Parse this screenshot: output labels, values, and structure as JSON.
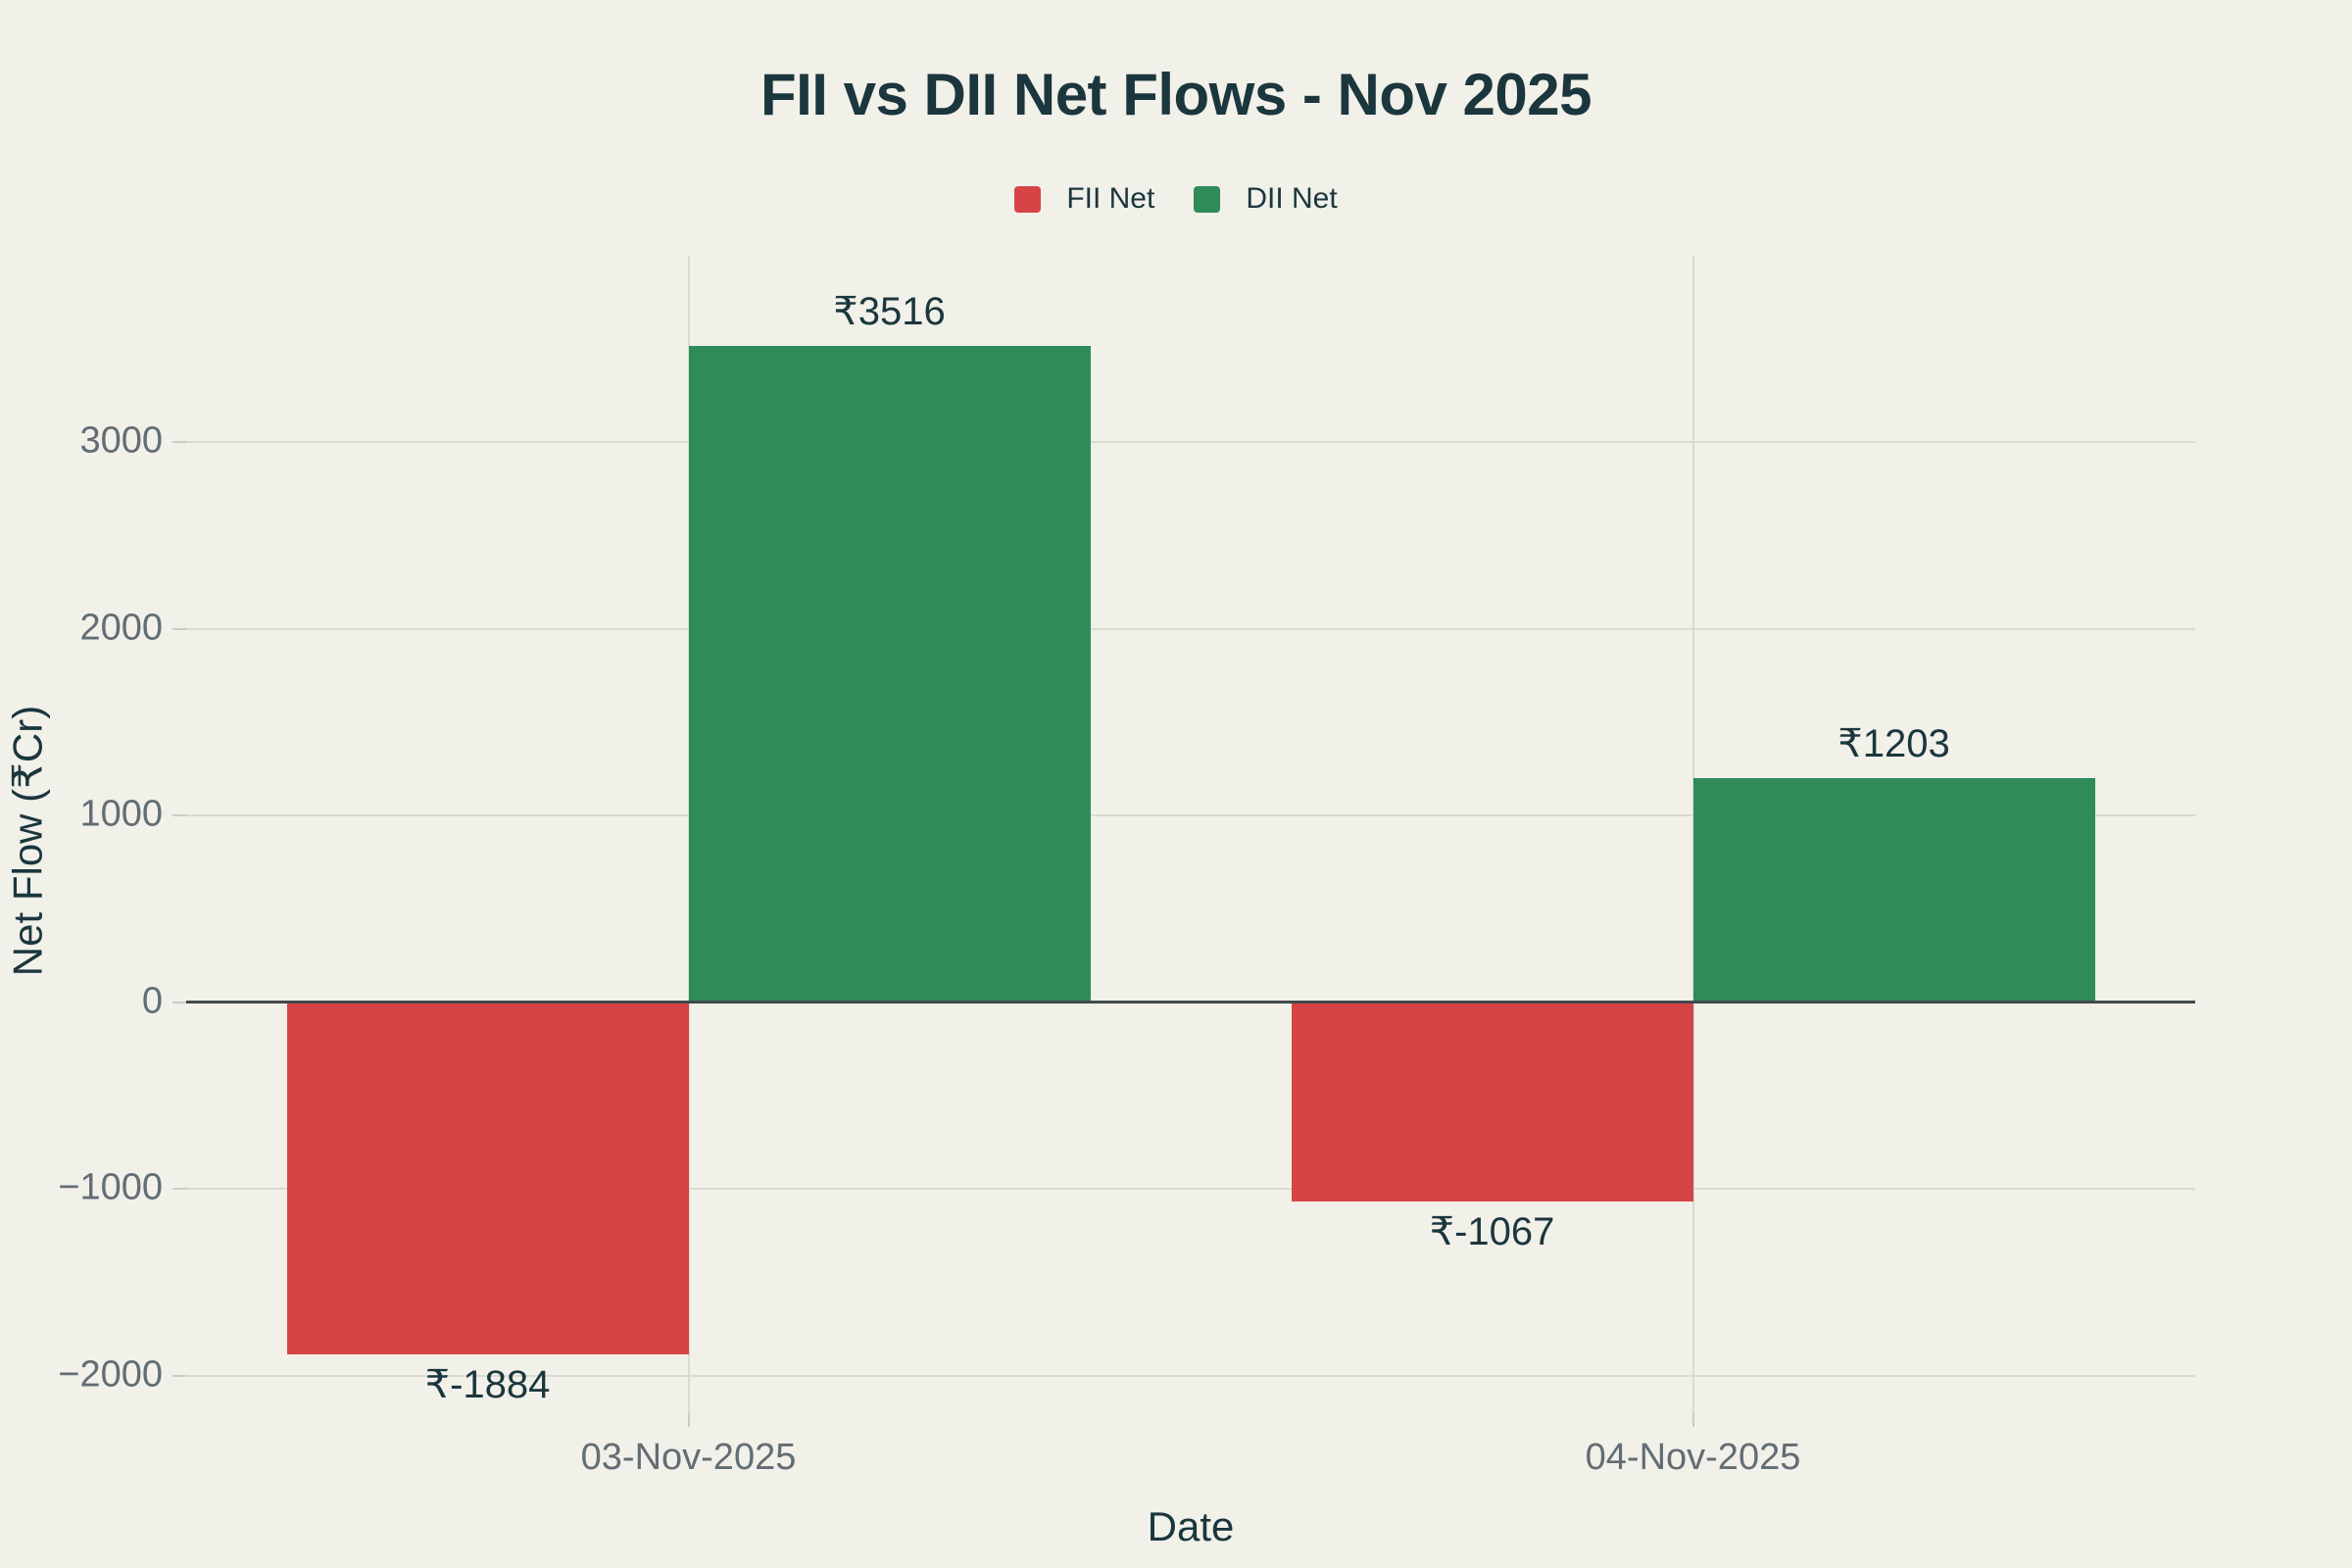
{
  "colors": {
    "background": "#f1f0e9",
    "text_dark": "#1b363d",
    "tick_text": "#626d74",
    "gridline": "#dbdad0",
    "zero_line": "#424a4d",
    "fii_red": "#d64545",
    "dii_green": "#2f8c58"
  },
  "chart_data": {
    "type": "bar",
    "title": "FII vs DII Net Flows - Nov 2025",
    "xlabel": "Date",
    "ylabel": "Net Flow (₹Cr)",
    "categories": [
      "03-Nov-2025",
      "04-Nov-2025"
    ],
    "series": [
      {
        "name": "FII Net",
        "color": "#d64545",
        "values": [
          -1884,
          -1067
        ],
        "bar_labels": [
          "₹-1884",
          "₹-1067"
        ]
      },
      {
        "name": "DII Net",
        "color": "#2f8c58",
        "values": [
          3516,
          1203
        ],
        "bar_labels": [
          "₹3516",
          "₹1203"
        ]
      }
    ],
    "ylim": [
      -2200,
      4000
    ],
    "yticks": [
      3000,
      2000,
      1000,
      0,
      -1000,
      -2000
    ],
    "grid": true,
    "legend_position": "top-center",
    "zero_line": true
  }
}
